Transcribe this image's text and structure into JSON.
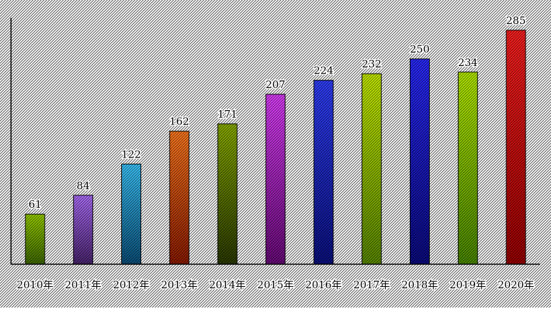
{
  "chart_data": {
    "type": "bar",
    "title": "",
    "xlabel": "",
    "ylabel": "",
    "ylim": [
      0,
      300
    ],
    "grid": false,
    "legend": "none",
    "categories": [
      "2010年",
      "2011年",
      "2012年",
      "2013年",
      "2014年",
      "2015年",
      "2016年",
      "2017年",
      "2018年",
      "2019年",
      "2020年"
    ],
    "values": [
      61,
      84,
      122,
      162,
      171,
      207,
      224,
      232,
      250,
      234,
      285
    ],
    "data_labels": [
      "61",
      "84",
      "122",
      "162",
      "171",
      "207",
      "224",
      "232",
      "250",
      "234",
      "285"
    ],
    "bar_colors": [
      [
        "#3f6a00",
        "#9bd400"
      ],
      [
        "#4a2470",
        "#b070ff"
      ],
      [
        "#0a4f7a",
        "#3cc8ff"
      ],
      [
        "#8c1a00",
        "#ff7a20"
      ],
      [
        "#2a3a00",
        "#8cb000"
      ],
      [
        "#6a0a7a",
        "#e040ff"
      ],
      [
        "#0a1080",
        "#3040ff"
      ],
      [
        "#5a8a00",
        "#c8f000"
      ],
      [
        "#0a0a80",
        "#2a2aff"
      ],
      [
        "#4a8a00",
        "#b8f000"
      ],
      [
        "#9a0000",
        "#ff2020"
      ]
    ],
    "background_pattern": "diagonal-hatch"
  }
}
